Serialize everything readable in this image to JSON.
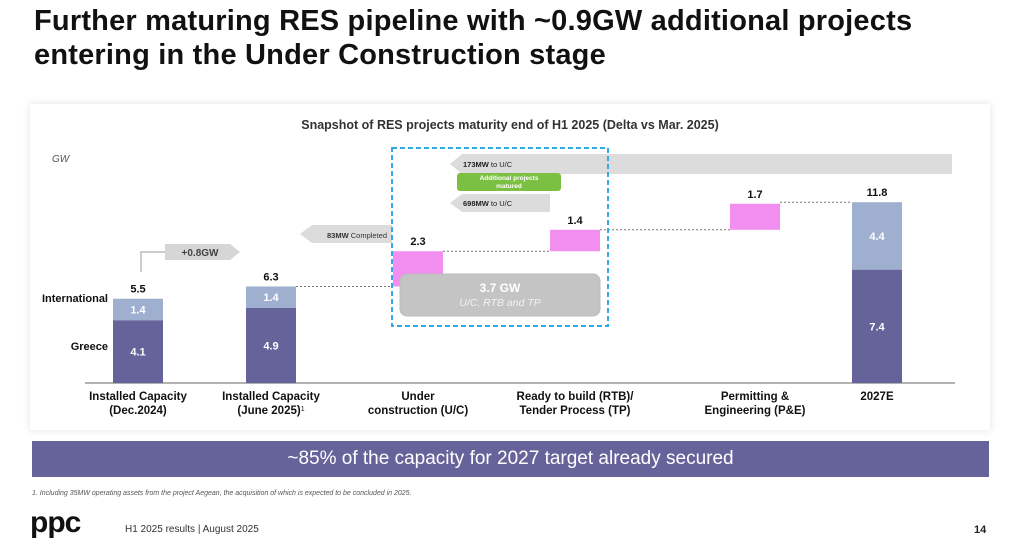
{
  "title": "Further maturing RES pipeline with ~0.9GW additional projects entering in the Under Construction stage",
  "chart_data": {
    "type": "bar",
    "title": "Snapshot of RES projects maturity end of H1 2025 (Delta vs Mar. 2025)",
    "unit": "GW",
    "categories": [
      [
        "Installed Capacity",
        "(Dec.2024)"
      ],
      [
        "Installed Capacity",
        "(June 2025)"
      ],
      [
        "Under",
        "construction (U/C)"
      ],
      [
        "Ready to build (RTB)/",
        "Tender Process (TP)"
      ],
      [
        "Permitting &",
        "Engineering (P&E)"
      ],
      [
        "2027E"
      ]
    ],
    "footnote_marker": "1",
    "row_labels": [
      "International",
      "Greece"
    ],
    "series": [
      {
        "name": "Greece",
        "values": [
          4.1,
          4.9,
          null,
          null,
          null,
          7.4
        ],
        "color": "#66639a"
      },
      {
        "name": "International",
        "values": [
          1.4,
          1.4,
          null,
          null,
          null,
          4.4
        ],
        "color": "#9fafcf"
      }
    ],
    "waterfall": [
      {
        "start": 6.3,
        "value": 2.3
      },
      {
        "start": 8.6,
        "value": 1.4
      },
      {
        "start": 10.0,
        "value": 1.7
      }
    ],
    "totals": [
      "5.5",
      "6.3",
      "2.3",
      "1.4",
      "1.7",
      "11.8"
    ],
    "segment_labels": {
      "greece": [
        "4.1",
        "4.9",
        "7.4"
      ],
      "international": [
        "1.4",
        "1.4",
        "4.4"
      ]
    },
    "ymax": 11.8,
    "delta_label": "+0.8GW",
    "arrows": [
      {
        "bold": "83MW",
        "text": "Completed"
      },
      {
        "bold": "173MW",
        "text": "to U/C"
      },
      {
        "bold": "698MW",
        "text": "to U/C"
      }
    ],
    "additional_label": [
      "Additional projects",
      "matured"
    ],
    "group_box": {
      "value": "3.7 GW",
      "text": "U/C, RTB and TP"
    },
    "colors": {
      "greece": "#66639a",
      "international": "#9fafcf",
      "pipeline": "#f28ef0",
      "dash_box": "#2fa9e8",
      "green": "#7cc043"
    }
  },
  "banner": "~85% of the capacity for 2027 target already secured",
  "footnote": "1. Including 35MW operating assets from the  project Aegean, the acquisition of which is expected to be concluded  in 2025.",
  "footer": "H1 2025 results | August 2025",
  "page_number": "14",
  "logo": "ppc"
}
